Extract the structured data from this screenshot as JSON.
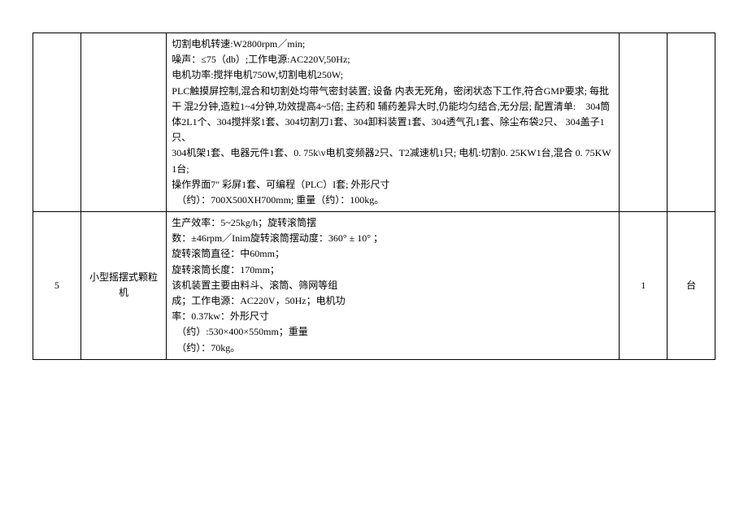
{
  "table": {
    "rows": [
      {
        "num": "",
        "name": "",
        "spec_lines": [
          "切割电机转速:W2800rpm／min;",
          "噪声：≤75（db）;工作电源:AC220V,50Hz;",
          "电机功率:搅拌电机750W,切割电机250W;",
          "PLC触摸屏控制,混合和切割处均带气密封装置; 设备 内表无死角，密闭状态下工作,符合GMP要求; 每批干 混2分钟,造粒1~4分钟,功效提高4~5倍; 主药和 辅药差异大时,仍能均匀结合,无分层; 配置清单:　304筒体2L1个、304搅拌浆1套、304切割刀1套、304卸料装置1套、304透气孔1套、除尘布袋2只、 304盖子1只、",
          "304机架1套、电器元件1套、0. 75k\\v电机变频器2只、T2减速机1只; 电机:切割0. 25KW1台,混合 0. 75KW1台;",
          "操作界面7\" 彩屏1套、可编程（PLC）I套; 外形尺寸",
          "　（约）：700X500XH700mm; 重量（约）：100kg。"
        ],
        "qty": "",
        "unit": ""
      },
      {
        "num": "5",
        "name": "小型摇摆式颗粒机",
        "spec_lines": [
          "生产效率：5~25kg/h；旋转滚筒摆",
          "数：±46rpm／Inim旋转滚筒摆动度：360° ± 10° ；",
          "旋转滚筒直径：中60mm；",
          "旋转滚筒长度：170mm；",
          "该机装置主要由料斗、滚筒、筛网等组",
          "成；工作电源：AC220V，50Hz；电机功",
          "率：0.37kw：外形尺寸",
          "　（约）:530×400×550mm；重量",
          "　（约）：70kg。"
        ],
        "qty": "1",
        "unit": "台"
      }
    ]
  }
}
